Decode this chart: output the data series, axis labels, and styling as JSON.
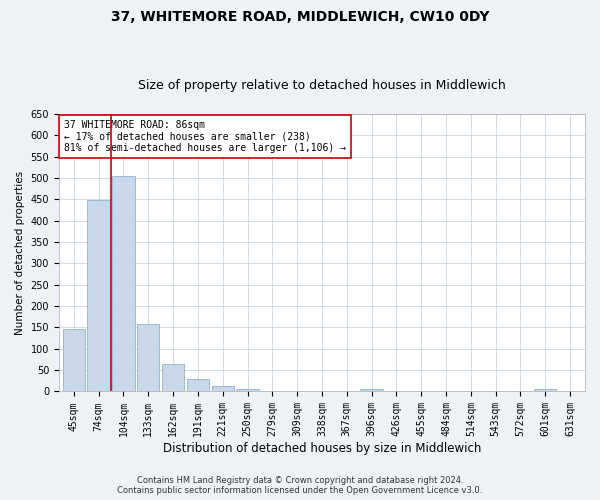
{
  "title": "37, WHITEMORE ROAD, MIDDLEWICH, CW10 0DY",
  "subtitle": "Size of property relative to detached houses in Middlewich",
  "xlabel": "Distribution of detached houses by size in Middlewich",
  "ylabel": "Number of detached properties",
  "footer1": "Contains HM Land Registry data © Crown copyright and database right 2024.",
  "footer2": "Contains public sector information licensed under the Open Government Licence v3.0.",
  "annotation_title": "37 WHITEMORE ROAD: 86sqm",
  "annotation_line2": "← 17% of detached houses are smaller (238)",
  "annotation_line3": "81% of semi-detached houses are larger (1,106) →",
  "bar_color": "#c8d8e8",
  "bar_edge_color": "#7ea8c8",
  "vline_color": "#cc0000",
  "vline_x": 1.5,
  "categories": [
    "45sqm",
    "74sqm",
    "104sqm",
    "133sqm",
    "162sqm",
    "191sqm",
    "221sqm",
    "250sqm",
    "279sqm",
    "309sqm",
    "338sqm",
    "367sqm",
    "396sqm",
    "426sqm",
    "455sqm",
    "484sqm",
    "514sqm",
    "543sqm",
    "572sqm",
    "601sqm",
    "631sqm"
  ],
  "values": [
    147,
    449,
    505,
    157,
    65,
    30,
    12,
    6,
    0,
    0,
    0,
    0,
    5,
    0,
    0,
    0,
    0,
    0,
    0,
    5,
    0
  ],
  "ylim": [
    0,
    650
  ],
  "yticks": [
    0,
    50,
    100,
    150,
    200,
    250,
    300,
    350,
    400,
    450,
    500,
    550,
    600,
    650
  ],
  "background_color": "#eef2f7",
  "plot_bg_color": "#ffffff",
  "grid_color": "#c0ccd8",
  "title_fontsize": 10,
  "subtitle_fontsize": 9,
  "annotation_box_color": "#ffffff",
  "annotation_box_edge": "#cc0000",
  "xlabel_fontsize": 8.5,
  "ylabel_fontsize": 7.5,
  "tick_fontsize": 7,
  "footer_fontsize": 6
}
